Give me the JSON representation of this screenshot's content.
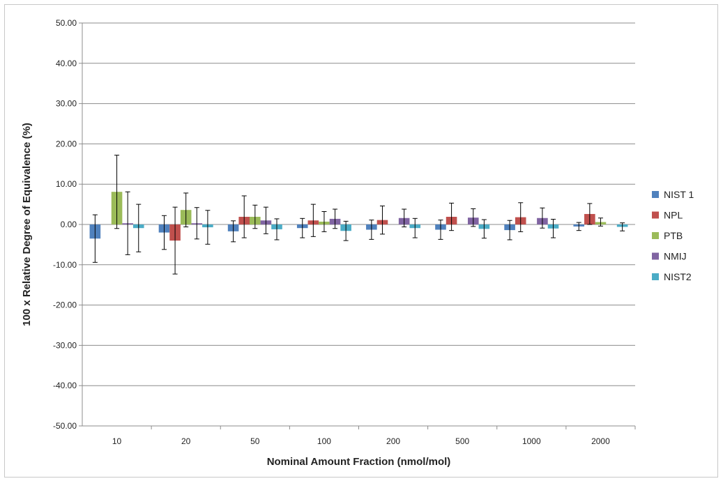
{
  "chart_data": {
    "type": "bar",
    "title": "",
    "xlabel": "Nominal Amount Fraction (nmol/mol)",
    "ylabel": "100 x Relative Degree of Equivalence (%)",
    "ylim": [
      -50,
      50
    ],
    "y_tick_step": 10,
    "y_tick_format": "fixed2",
    "grid": true,
    "legend_position": "right",
    "error_bars": true,
    "categories": [
      "10",
      "20",
      "50",
      "100",
      "200",
      "500",
      "1000",
      "2000"
    ],
    "series": [
      {
        "name": "NIST 1",
        "color": "#4f81bd",
        "values": [
          -3.5,
          -2.0,
          -1.7,
          -0.9,
          -1.3,
          -1.3,
          -1.4,
          -0.5
        ],
        "errors": [
          5.9,
          4.2,
          2.6,
          2.4,
          2.4,
          2.4,
          2.4,
          1.0
        ]
      },
      {
        "name": "NPL",
        "color": "#c0504d",
        "values": [
          null,
          -4.0,
          1.9,
          1.0,
          1.1,
          1.9,
          1.8,
          2.6
        ],
        "errors": [
          null,
          8.3,
          5.2,
          4.0,
          3.5,
          3.4,
          3.6,
          2.6
        ]
      },
      {
        "name": "PTB",
        "color": "#9bbb59",
        "values": [
          8.1,
          3.6,
          1.9,
          0.7,
          null,
          null,
          null,
          0.6
        ],
        "errors": [
          9.1,
          4.2,
          2.9,
          2.5,
          null,
          null,
          null,
          1.0
        ]
      },
      {
        "name": "NMIJ",
        "color": "#8064a2",
        "values": [
          0.3,
          0.3,
          1.0,
          1.4,
          1.6,
          1.7,
          1.6,
          null
        ],
        "errors": [
          7.8,
          3.9,
          3.3,
          2.4,
          2.2,
          2.2,
          2.5,
          null
        ]
      },
      {
        "name": "NIST2",
        "color": "#4bacc6",
        "values": [
          -0.9,
          -0.7,
          -1.2,
          -1.6,
          -0.9,
          -1.1,
          -1.0,
          -0.6
        ],
        "errors": [
          5.9,
          4.2,
          2.6,
          2.4,
          2.4,
          2.3,
          2.3,
          1.0
        ]
      }
    ]
  }
}
